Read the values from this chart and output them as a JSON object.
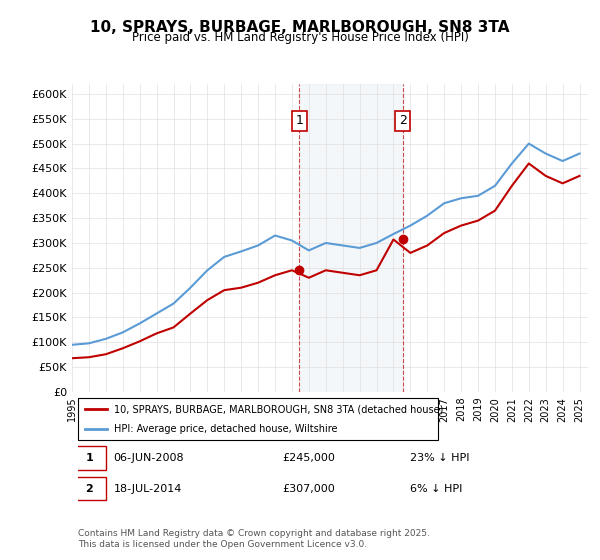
{
  "title": "10, SPRAYS, BURBAGE, MARLBOROUGH, SN8 3TA",
  "subtitle": "Price paid vs. HM Land Registry's House Price Index (HPI)",
  "xlabel": "",
  "ylabel": "",
  "ylim": [
    0,
    620000
  ],
  "yticks": [
    0,
    50000,
    100000,
    150000,
    200000,
    250000,
    300000,
    350000,
    400000,
    450000,
    500000,
    550000,
    600000
  ],
  "ytick_labels": [
    "£0",
    "£50K",
    "£100K",
    "£150K",
    "£200K",
    "£250K",
    "£300K",
    "£350K",
    "£400K",
    "£450K",
    "£500K",
    "£550K",
    "£600K"
  ],
  "hpi_color": "#5b9bd5",
  "price_color": "#c00000",
  "marker_color": "#c00000",
  "shade_color": "#dce6f1",
  "transaction1": {
    "date": "06-JUN-2008",
    "price": 245000,
    "label": "1",
    "x": 2008.43,
    "hpi_pct": "23% ↓ HPI"
  },
  "transaction2": {
    "date": "18-JUL-2014",
    "price": 307000,
    "label": "2",
    "x": 2014.54,
    "hpi_pct": "6% ↓ HPI"
  },
  "legend_house": "10, SPRAYS, BURBAGE, MARLBOROUGH, SN8 3TA (detached house)",
  "legend_hpi": "HPI: Average price, detached house, Wiltshire",
  "footer": "Contains HM Land Registry data © Crown copyright and database right 2025.\nThis data is licensed under the Open Government Licence v3.0.",
  "hpi_x": [
    1995,
    1996,
    1997,
    1998,
    1999,
    2000,
    2001,
    2002,
    2003,
    2004,
    2005,
    2006,
    2007,
    2008,
    2009,
    2010,
    2011,
    2012,
    2013,
    2014,
    2015,
    2016,
    2017,
    2018,
    2019,
    2020,
    2021,
    2022,
    2023,
    2024,
    2025
  ],
  "hpi_y": [
    95000,
    98000,
    107000,
    120000,
    138000,
    158000,
    178000,
    210000,
    245000,
    272000,
    283000,
    295000,
    315000,
    305000,
    285000,
    300000,
    295000,
    290000,
    300000,
    318000,
    335000,
    355000,
    380000,
    390000,
    395000,
    415000,
    460000,
    500000,
    480000,
    465000,
    480000
  ],
  "price_x": [
    1995,
    1996,
    1997,
    1998,
    1999,
    2000,
    2001,
    2002,
    2003,
    2004,
    2005,
    2006,
    2007,
    2008,
    2009,
    2010,
    2011,
    2012,
    2013,
    2014,
    2015,
    2016,
    2017,
    2018,
    2019,
    2020,
    2021,
    2022,
    2023,
    2024,
    2025
  ],
  "price_y": [
    68000,
    70000,
    76000,
    88000,
    102000,
    118000,
    130000,
    158000,
    185000,
    205000,
    210000,
    220000,
    235000,
    245000,
    230000,
    245000,
    240000,
    235000,
    245000,
    307000,
    280000,
    295000,
    320000,
    335000,
    345000,
    365000,
    415000,
    460000,
    435000,
    420000,
    435000
  ],
  "xlim": [
    1995,
    2025.5
  ],
  "xticks": [
    1995,
    1996,
    1997,
    1998,
    1999,
    2000,
    2001,
    2002,
    2003,
    2004,
    2005,
    2006,
    2007,
    2008,
    2009,
    2010,
    2011,
    2012,
    2013,
    2014,
    2015,
    2016,
    2017,
    2018,
    2019,
    2020,
    2021,
    2022,
    2023,
    2024,
    2025
  ]
}
